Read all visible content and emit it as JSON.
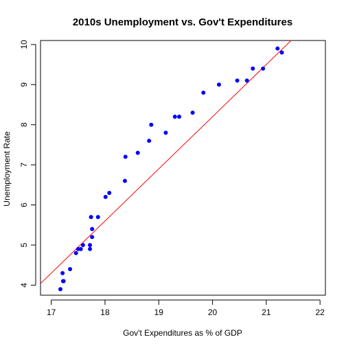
{
  "chart_data": {
    "type": "scatter",
    "title": "2010s Unemployment vs. Gov't Expenditures",
    "xlabel": "Gov't Expenditures as % of GDP",
    "ylabel": "Unemployment Rate",
    "xlim": [
      16.8,
      22.1
    ],
    "ylim": [
      3.75,
      10.1
    ],
    "xticks": [
      17,
      18,
      19,
      20,
      21,
      22
    ],
    "yticks": [
      4,
      5,
      6,
      7,
      8,
      9,
      10
    ],
    "point_color": "#0000ff",
    "fit_line_color": "#ff0000",
    "fit_line": {
      "slope": 1.3,
      "intercept": -17.8
    },
    "points": [
      {
        "x": 17.17,
        "y": 3.9
      },
      {
        "x": 17.22,
        "y": 4.1
      },
      {
        "x": 17.23,
        "y": 4.1
      },
      {
        "x": 17.21,
        "y": 4.3
      },
      {
        "x": 17.35,
        "y": 4.4
      },
      {
        "x": 17.46,
        "y": 4.8
      },
      {
        "x": 17.5,
        "y": 4.9
      },
      {
        "x": 17.55,
        "y": 4.9
      },
      {
        "x": 17.59,
        "y": 5.0
      },
      {
        "x": 17.72,
        "y": 4.9
      },
      {
        "x": 17.72,
        "y": 5.0
      },
      {
        "x": 17.76,
        "y": 5.2
      },
      {
        "x": 17.76,
        "y": 5.4
      },
      {
        "x": 17.74,
        "y": 5.7
      },
      {
        "x": 17.87,
        "y": 5.7
      },
      {
        "x": 18.01,
        "y": 6.2
      },
      {
        "x": 18.08,
        "y": 6.3
      },
      {
        "x": 18.37,
        "y": 6.6
      },
      {
        "x": 18.38,
        "y": 7.2
      },
      {
        "x": 18.61,
        "y": 7.3
      },
      {
        "x": 18.82,
        "y": 7.6
      },
      {
        "x": 18.86,
        "y": 8.0
      },
      {
        "x": 19.13,
        "y": 7.8
      },
      {
        "x": 19.3,
        "y": 8.2
      },
      {
        "x": 19.38,
        "y": 8.2
      },
      {
        "x": 19.63,
        "y": 8.3
      },
      {
        "x": 19.83,
        "y": 8.8
      },
      {
        "x": 20.12,
        "y": 9.0
      },
      {
        "x": 20.46,
        "y": 9.1
      },
      {
        "x": 20.64,
        "y": 9.1
      },
      {
        "x": 20.75,
        "y": 9.4
      },
      {
        "x": 20.94,
        "y": 9.4
      },
      {
        "x": 21.21,
        "y": 9.9
      },
      {
        "x": 21.29,
        "y": 9.8
      }
    ]
  }
}
